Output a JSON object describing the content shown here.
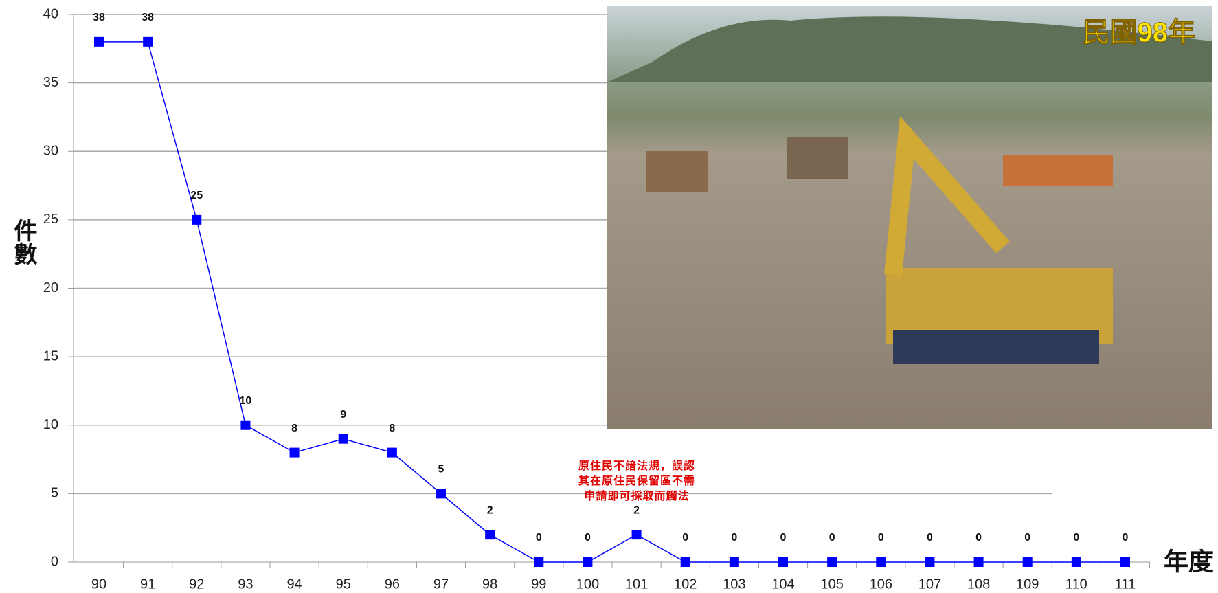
{
  "chart_data": {
    "type": "line",
    "y_label": "件數",
    "x_label": "年度",
    "categories": [
      "90",
      "91",
      "92",
      "93",
      "94",
      "95",
      "96",
      "97",
      "98",
      "99",
      "100",
      "101",
      "102",
      "103",
      "104",
      "105",
      "106",
      "107",
      "108",
      "109",
      "110",
      "111"
    ],
    "series": [
      {
        "name": "件數",
        "color": "#0000ff",
        "values": [
          38,
          38,
          25,
          10,
          8,
          9,
          8,
          5,
          2,
          0,
          0,
          2,
          0,
          0,
          0,
          0,
          0,
          0,
          0,
          0,
          0,
          0
        ]
      }
    ],
    "ylim": [
      0,
      40
    ],
    "yticks": [
      0,
      5,
      10,
      15,
      20,
      25,
      30,
      35,
      40
    ],
    "grid": true,
    "annotation": [
      "原住民不諳法規，誤認",
      "其在原住民保留區不需",
      "申請即可採取而觸法"
    ],
    "image_caption": "民國98年"
  }
}
